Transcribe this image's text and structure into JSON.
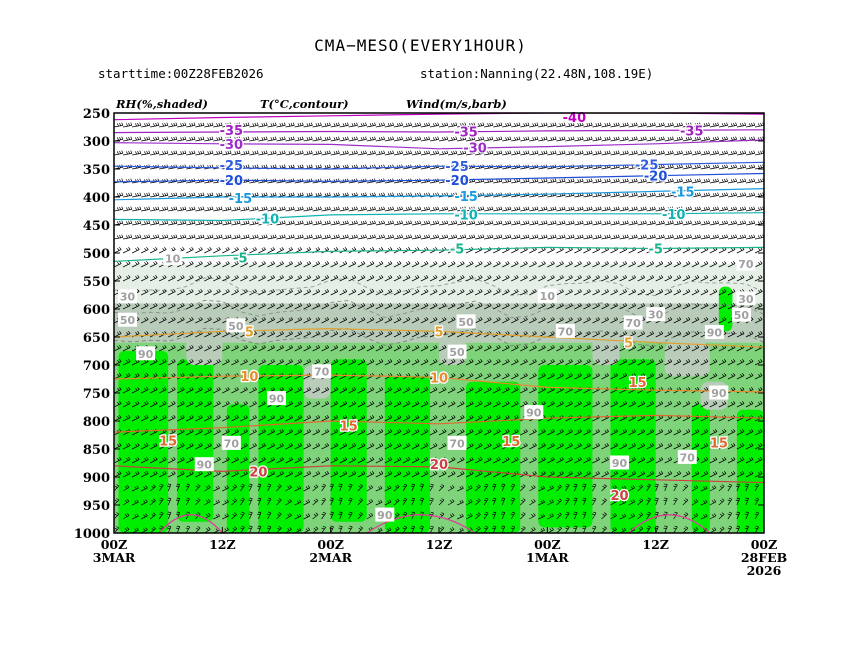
{
  "header": {
    "title": "CMA−MESO(EVERY1HOUR)",
    "starttime": "starttime:00Z28FEB2026",
    "station": "station:Nanning(22.48N,108.19E)"
  },
  "panel_labels": {
    "rh": "RH(%,shaded)",
    "temp": "T(°C,contour)",
    "wind": "Wind(m/s,barb)"
  },
  "colors": {
    "rh_light": "#e6efe6",
    "rh_mid": "#b9ccba",
    "rh_green": "#7fd37a",
    "rh_bright": "#00ee00",
    "barb": "#000000",
    "frame": "#000000"
  },
  "chart_data": {
    "type": "heatmap",
    "title": "CMA−MESO(EVERY1HOUR)",
    "xlabel": "",
    "ylabel": "",
    "x_ticks": [
      {
        "t": 0,
        "line1": "00Z",
        "line2": "3MAR"
      },
      {
        "t": 12,
        "line1": "12Z",
        "line2": ""
      },
      {
        "t": 24,
        "line1": "00Z",
        "line2": "2MAR"
      },
      {
        "t": 36,
        "line1": "12Z",
        "line2": ""
      },
      {
        "t": 48,
        "line1": "00Z",
        "line2": "1MAR"
      },
      {
        "t": 60,
        "line1": "12Z",
        "line2": ""
      },
      {
        "t": 72,
        "line1": "00Z",
        "line2": "28FEB",
        "line3": "2026"
      }
    ],
    "x_range_hours": [
      0,
      72
    ],
    "y_ticks": [
      250,
      300,
      350,
      400,
      450,
      500,
      550,
      600,
      650,
      700,
      750,
      800,
      850,
      900,
      950,
      1000
    ],
    "ylim": [
      250,
      1000
    ],
    "rh_levels": [
      10,
      30,
      50,
      70,
      90
    ],
    "temperature_contours": [
      {
        "value": -40,
        "color": "#c000c0",
        "p": [
          262,
          258,
          255,
          252,
          250,
          250,
          252
        ]
      },
      {
        "value": -35,
        "color": "#a020c0",
        "p": [
          285,
          284,
          283,
          284,
          282,
          281,
          280
        ]
      },
      {
        "value": -30,
        "color": "#9c2dc8",
        "p": [
          303,
          305,
          306,
          314,
          310,
          305,
          298
        ]
      },
      {
        "value": -25,
        "color": "#2e5be0",
        "p": [
          345,
          348,
          350,
          345,
          346,
          342,
          338
        ]
      },
      {
        "value": -20,
        "color": "#1f4fd6",
        "p": [
          373,
          370,
          372,
          370,
          366,
          362,
          358
        ]
      },
      {
        "value": -15,
        "color": "#1a9adf",
        "p": [
          405,
          400,
          400,
          398,
          395,
          390,
          385
        ]
      },
      {
        "value": -10,
        "color": "#12b2b2",
        "p": [
          440,
          442,
          432,
          430,
          430,
          430,
          428
        ]
      },
      {
        "value": -5,
        "color": "#1ab48a",
        "p": [
          515,
          505,
          497,
          495,
          490,
          492,
          490
        ]
      },
      {
        "value": 5,
        "color": "#e0a030",
        "p": [
          650,
          640,
          635,
          640,
          650,
          660,
          668
        ]
      },
      {
        "value": 10,
        "color": "#e88a30",
        "p": [
          725,
          720,
          718,
          722,
          740,
          745,
          748
        ]
      },
      {
        "value": 15,
        "color": "#e06830",
        "p": [
          820,
          812,
          800,
          805,
          795,
          790,
          795
        ]
      },
      {
        "value": 20,
        "color": "#cc4040",
        "p": [
          880,
          890,
          880,
          882,
          900,
          905,
          910
        ]
      }
    ],
    "temperature_labels": [
      {
        "text": "-40",
        "t": 51,
        "p": 257,
        "color": "#c000c0"
      },
      {
        "text": "-35",
        "t": 13,
        "p": 280,
        "color": "#a020c0"
      },
      {
        "text": "-35",
        "t": 39,
        "p": 283,
        "color": "#a020c0"
      },
      {
        "text": "-35",
        "t": 64,
        "p": 281,
        "color": "#a020c0"
      },
      {
        "text": "-30",
        "t": 13,
        "p": 305,
        "color": "#9c2dc8"
      },
      {
        "text": "-30",
        "t": 40,
        "p": 312,
        "color": "#9c2dc8"
      },
      {
        "text": "-25",
        "t": 13,
        "p": 343,
        "color": "#2e5be0"
      },
      {
        "text": "-25",
        "t": 38,
        "p": 345,
        "color": "#2e5be0"
      },
      {
        "text": "-25",
        "t": 59,
        "p": 342,
        "color": "#2e5be0"
      },
      {
        "text": "-20",
        "t": 13,
        "p": 370,
        "color": "#1f4fd6"
      },
      {
        "text": "-20",
        "t": 38,
        "p": 370,
        "color": "#1f4fd6"
      },
      {
        "text": "-20",
        "t": 60,
        "p": 362,
        "color": "#1f4fd6"
      },
      {
        "text": "-15",
        "t": 14,
        "p": 402,
        "color": "#1a9adf"
      },
      {
        "text": "-15",
        "t": 39,
        "p": 398,
        "color": "#1a9adf"
      },
      {
        "text": "-15",
        "t": 63,
        "p": 390,
        "color": "#1a9adf"
      },
      {
        "text": "-10",
        "t": 17,
        "p": 438,
        "color": "#12b2b2"
      },
      {
        "text": "-10",
        "t": 39,
        "p": 431,
        "color": "#12b2b2"
      },
      {
        "text": "-10",
        "t": 62,
        "p": 430,
        "color": "#12b2b2"
      },
      {
        "text": "-5",
        "t": 14,
        "p": 508,
        "color": "#1ab48a"
      },
      {
        "text": "-5",
        "t": 38,
        "p": 492,
        "color": "#1ab48a"
      },
      {
        "text": "-5",
        "t": 60,
        "p": 492,
        "color": "#1ab48a"
      },
      {
        "text": "5",
        "t": 15,
        "p": 640,
        "color": "#e0a030"
      },
      {
        "text": "5",
        "t": 36,
        "p": 640,
        "color": "#e0a030"
      },
      {
        "text": "5",
        "t": 57,
        "p": 660,
        "color": "#e0a030"
      },
      {
        "text": "10",
        "t": 15,
        "p": 720,
        "color": "#e88a30"
      },
      {
        "text": "10",
        "t": 36,
        "p": 722,
        "color": "#e88a30"
      },
      {
        "text": "15",
        "t": 6,
        "p": 835,
        "color": "#e06830"
      },
      {
        "text": "15",
        "t": 26,
        "p": 808,
        "color": "#e06830"
      },
      {
        "text": "15",
        "t": 44,
        "p": 836,
        "color": "#e06830"
      },
      {
        "text": "15",
        "t": 58,
        "p": 730,
        "color": "#e06830"
      },
      {
        "text": "15",
        "t": 67,
        "p": 838,
        "color": "#e06830"
      },
      {
        "text": "20",
        "t": 16,
        "p": 890,
        "color": "#cc4040"
      },
      {
        "text": "20",
        "t": 36,
        "p": 877,
        "color": "#cc4040"
      },
      {
        "text": "20",
        "t": 56,
        "p": 932,
        "color": "#cc4040"
      }
    ],
    "rh_labels": [
      {
        "text": "30",
        "t": 1.5,
        "p": 578
      },
      {
        "text": "50",
        "t": 1.5,
        "p": 620
      },
      {
        "text": "90",
        "t": 3.5,
        "p": 680
      },
      {
        "text": "10",
        "t": 6.5,
        "p": 510
      },
      {
        "text": "50",
        "t": 13.5,
        "p": 630
      },
      {
        "text": "90",
        "t": 18,
        "p": 760
      },
      {
        "text": "70",
        "t": 23,
        "p": 712
      },
      {
        "text": "90",
        "t": 10,
        "p": 878
      },
      {
        "text": "70",
        "t": 13,
        "p": 840
      },
      {
        "text": "50",
        "t": 38,
        "p": 677
      },
      {
        "text": "70",
        "t": 38,
        "p": 840
      },
      {
        "text": "90",
        "t": 46.5,
        "p": 785
      },
      {
        "text": "10",
        "t": 48,
        "p": 577
      },
      {
        "text": "50",
        "t": 39,
        "p": 623
      },
      {
        "text": "70",
        "t": 50,
        "p": 640
      },
      {
        "text": "30",
        "t": 60,
        "p": 610
      },
      {
        "text": "70",
        "t": 57.5,
        "p": 625
      },
      {
        "text": "90",
        "t": 56,
        "p": 875
      },
      {
        "text": "70",
        "t": 63.5,
        "p": 865
      },
      {
        "text": "90",
        "t": 67,
        "p": 750
      },
      {
        "text": "90",
        "t": 66.5,
        "p": 642
      },
      {
        "text": "50",
        "t": 69.5,
        "p": 611
      },
      {
        "text": "70",
        "t": 70,
        "p": 520
      },
      {
        "text": "30",
        "t": 70,
        "p": 582
      },
      {
        "text": "90",
        "t": 30,
        "p": 968
      }
    ]
  }
}
